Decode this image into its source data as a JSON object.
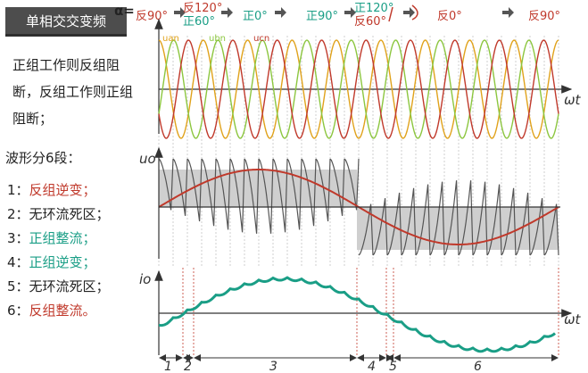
{
  "title": "单相交交变频",
  "description": "正组工作则反组阻断，反组工作则正组阻断；",
  "stages_title": "波形分6段：",
  "stages": [
    {
      "num": "1：",
      "text": "反组逆变；",
      "color": "#c0392b"
    },
    {
      "num": "2：",
      "text": "无环流死区；",
      "color": "#222222"
    },
    {
      "num": "3：",
      "text": "正组整流；",
      "color": "#1a9e86"
    },
    {
      "num": "4：",
      "text": "正组逆变；",
      "color": "#1a9e86"
    },
    {
      "num": "5：",
      "text": "无环流死区；",
      "color": "#222222"
    },
    {
      "num": "6：",
      "text": "反组整流。",
      "color": "#c0392b"
    }
  ],
  "alpha": {
    "label": "α=",
    "sequence": [
      {
        "lines": [
          "反90°"
        ],
        "colors": [
          "#c0392b"
        ]
      },
      {
        "lines": [
          "反120°",
          "正60°"
        ],
        "colors": [
          "#c0392b",
          "#1a9e86"
        ]
      },
      {
        "lines": [
          "正0°"
        ],
        "colors": [
          "#1a9e86"
        ]
      },
      {
        "lines": [
          "正90°"
        ],
        "colors": [
          "#1a9e86"
        ]
      },
      {
        "lines": [
          "正120°",
          "反60°"
        ],
        "colors": [
          "#1a9e86",
          "#c0392b"
        ]
      },
      {
        "lines": [
          "反0°"
        ],
        "colors": [
          "#c0392b"
        ]
      },
      {
        "lines": [
          "反90°"
        ],
        "colors": [
          "#c0392b"
        ]
      }
    ]
  },
  "phase_labels": [
    "uan",
    "ubn",
    "ucn"
  ],
  "axis_labels": {
    "omega_t": "ωt",
    "output_voltage": "uo",
    "output_current": "io"
  },
  "segment_labels": [
    "1",
    "2",
    "3",
    "4",
    "5",
    "6"
  ],
  "colors": {
    "phase_a": "#e0a21b",
    "phase_b": "#8cc63f",
    "phase_c": "#c0392b",
    "teal": "#1a9e86",
    "red": "#c0392b",
    "gray_fill": "#cfcfcf",
    "arrow": "#555555"
  }
}
